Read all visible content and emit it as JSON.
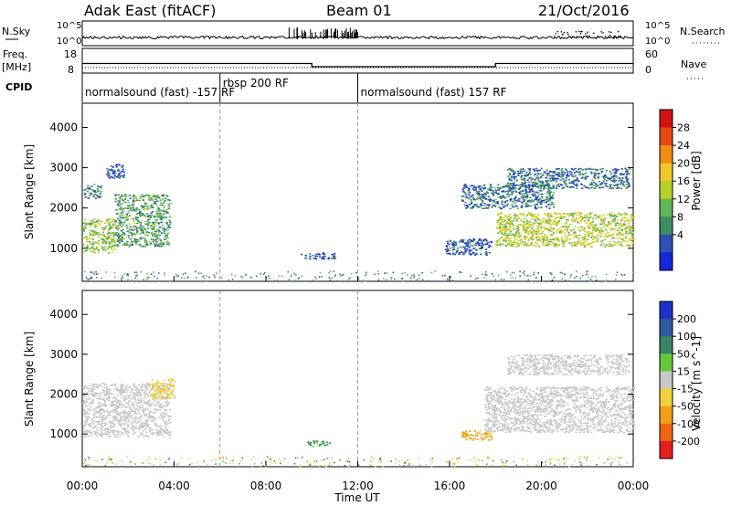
{
  "header": {
    "title": "Adak East (fitACF)",
    "beam": "Beam 01",
    "date": "21/Oct/2016"
  },
  "panels": {
    "nsky": {
      "label": "N.Sky",
      "tick_top": "10^5",
      "tick_bottom": "10^0"
    },
    "nsearch": {
      "label": "N.Search",
      "tick_top": "10^5",
      "tick_bottom": "10^0"
    },
    "freq": {
      "label_line1": "Freq.",
      "label_line2": "[MHz]",
      "tick_top": "18",
      "tick_bottom": "8"
    },
    "nave": {
      "label": "Nave",
      "tick_top": "60",
      "tick_bottom": "0"
    },
    "cpid": {
      "label": "CPID",
      "segments": [
        {
          "start_hour": 0,
          "text": "normalsound (fast) -157 RF"
        },
        {
          "start_hour": 6,
          "text": "rbsp 200 RF"
        },
        {
          "start_hour": 12,
          "text": "normalsound (fast) 157 RF"
        }
      ]
    }
  },
  "colorbars": {
    "power": {
      "label": "Power [dB]",
      "ticks": [
        "4",
        "8",
        "12",
        "16",
        "20",
        "24",
        "28"
      ],
      "colors": [
        "#1428d8",
        "#2d50b4",
        "#3c8c64",
        "#64b45a",
        "#b4d228",
        "#f0c828",
        "#f08c14",
        "#e64614",
        "#d21414"
      ]
    },
    "velocity": {
      "label": "Velocity [m s^-1]",
      "ticks": [
        "200",
        "100",
        "50",
        "15",
        "-15",
        "-50",
        "-100",
        "-200"
      ],
      "colors": [
        "#1e32c8",
        "#2d5aa0",
        "#3c8264",
        "#64c83c",
        "#c8c8c8",
        "#f0d23c",
        "#f0a014",
        "#f06414",
        "#e61e1e"
      ]
    }
  },
  "axes": {
    "ylabel": "Slant Range [km]",
    "xlabel": "Time UT",
    "xticks": [
      "00:00",
      "04:00",
      "08:00",
      "12:00",
      "16:00",
      "20:00",
      "00:00"
    ],
    "yticks": [
      "1000",
      "2000",
      "3000",
      "4000"
    ]
  },
  "chart_data": {
    "type": "heatmap",
    "title": "Adak East (fitACF) Beam 01 21/Oct/2016",
    "xlabel": "Time UT",
    "ylabel": "Slant Range [km]",
    "xlim_hours": [
      0,
      24
    ],
    "ylim_km": [
      180,
      4600
    ],
    "dashed_vlines_hours": [
      6,
      12
    ],
    "frequency_steps": [
      {
        "from_hour": 0,
        "to_hour": 10,
        "freq_mhz": 11.9
      },
      {
        "from_hour": 10,
        "to_hour": 18,
        "freq_mhz": 10.6
      },
      {
        "from_hour": 18,
        "to_hour": 24,
        "freq_mhz": 11.9
      }
    ],
    "power_regions": [
      {
        "t0": 0.0,
        "t1": 1.4,
        "r0": 900,
        "r1": 1750,
        "power_db": 16
      },
      {
        "t0": 1.4,
        "t1": 3.8,
        "r0": 1050,
        "r1": 2350,
        "power_db": 12
      },
      {
        "t0": 0.0,
        "t1": 0.8,
        "r0": 2250,
        "r1": 2600,
        "power_db": 10
      },
      {
        "t0": 1.0,
        "t1": 1.8,
        "r0": 2750,
        "r1": 3100,
        "power_db": 6
      },
      {
        "t0": 9.5,
        "t1": 11.0,
        "r0": 750,
        "r1": 900,
        "power_db": 6
      },
      {
        "t0": 15.8,
        "t1": 17.8,
        "r0": 850,
        "r1": 1250,
        "power_db": 6
      },
      {
        "t0": 16.5,
        "t1": 20.5,
        "r0": 2000,
        "r1": 2600,
        "power_db": 8
      },
      {
        "t0": 18.0,
        "t1": 24.0,
        "r0": 1050,
        "r1": 1900,
        "power_db": 18
      },
      {
        "t0": 18.5,
        "t1": 23.8,
        "r0": 2500,
        "r1": 3000,
        "power_db": 8
      }
    ],
    "velocity_regions": [
      {
        "t0": 0.0,
        "t1": 3.8,
        "r0": 950,
        "r1": 2300,
        "velocity_ms": 0
      },
      {
        "t0": 3.0,
        "t1": 4.0,
        "r0": 1900,
        "r1": 2400,
        "velocity_ms": -40
      },
      {
        "t0": 9.8,
        "t1": 10.8,
        "r0": 700,
        "r1": 850,
        "velocity_ms": 30
      },
      {
        "t0": 16.5,
        "t1": 17.8,
        "r0": 850,
        "r1": 1100,
        "velocity_ms": -60
      },
      {
        "t0": 17.5,
        "t1": 24.0,
        "r0": 1050,
        "r1": 2200,
        "velocity_ms": 0
      },
      {
        "t0": 18.5,
        "t1": 23.8,
        "r0": 2500,
        "r1": 3000,
        "velocity_ms": 0
      }
    ]
  }
}
